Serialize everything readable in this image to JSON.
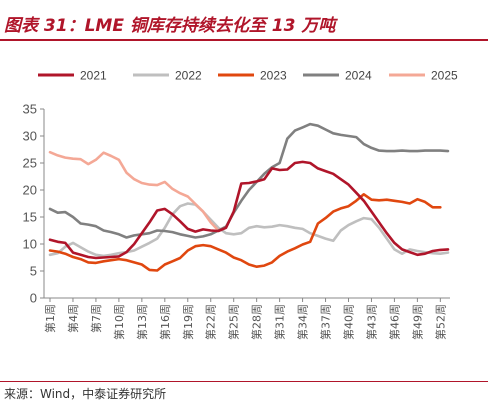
{
  "header": {
    "title": "图表 31：LME 铜库存持续去化至 13 万吨"
  },
  "footer": {
    "source": "来源：Wind，中泰证券研究所"
  },
  "colors": {
    "accent": "#b0152a"
  },
  "chart_data": {
    "type": "line",
    "title": "",
    "xlabel": "",
    "ylabel": "",
    "ylim": [
      0,
      35
    ],
    "yticks": [
      0,
      5,
      10,
      15,
      20,
      25,
      30,
      35
    ],
    "grid": false,
    "legend_position": "top",
    "x": [
      1,
      2,
      3,
      4,
      5,
      6,
      7,
      8,
      9,
      10,
      11,
      12,
      13,
      14,
      15,
      16,
      17,
      18,
      19,
      20,
      21,
      22,
      23,
      24,
      25,
      26,
      27,
      28,
      29,
      30,
      31,
      32,
      33,
      34,
      35,
      36,
      37,
      38,
      39,
      40,
      41,
      42,
      43,
      44,
      45,
      46,
      47,
      48,
      49,
      50,
      51,
      52,
      53
    ],
    "xtick_labels": [
      "第1周",
      "第4周",
      "第7周",
      "第10周",
      "第13周",
      "第16周",
      "第19周",
      "第22周",
      "第25周",
      "第28周",
      "第31周",
      "第34周",
      "第37周",
      "第40周",
      "第43周",
      "第46周",
      "第49周",
      "第52周"
    ],
    "xtick_positions": [
      1,
      4,
      7,
      10,
      13,
      16,
      19,
      22,
      25,
      28,
      31,
      34,
      37,
      40,
      43,
      46,
      49,
      52
    ],
    "series": [
      {
        "name": "2021",
        "color": "#b0152a",
        "values": [
          10.8,
          10.4,
          10.2,
          8.4,
          8.0,
          7.6,
          7.4,
          7.5,
          7.6,
          7.7,
          8.5,
          10.0,
          12.0,
          14.0,
          16.2,
          16.5,
          15.5,
          14.2,
          12.8,
          12.3,
          12.7,
          12.5,
          12.4,
          13.0,
          16.0,
          21.2,
          21.3,
          21.6,
          22.0,
          24.0,
          23.7,
          23.8,
          25.0,
          25.2,
          25.0,
          24.0,
          23.5,
          23.0,
          22.0,
          21.0,
          19.5,
          18.0,
          16.0,
          14.0,
          12.0,
          10.2,
          9.0,
          8.5,
          8.0,
          8.2,
          8.7,
          8.9,
          9.0
        ]
      },
      {
        "name": "2022",
        "color": "#bfbfbf",
        "values": [
          8.0,
          8.3,
          9.5,
          10.2,
          9.4,
          8.6,
          8.0,
          7.8,
          8.0,
          8.3,
          8.5,
          8.8,
          9.5,
          10.2,
          11.0,
          13.0,
          15.5,
          17.0,
          17.5,
          17.3,
          16.0,
          14.5,
          13.0,
          12.0,
          11.8,
          12.0,
          13.0,
          13.3,
          13.1,
          13.2,
          13.5,
          13.3,
          13.0,
          12.8,
          12.0,
          11.5,
          11.0,
          10.6,
          12.5,
          13.5,
          14.2,
          14.8,
          14.6,
          13.0,
          11.0,
          9.0,
          8.2,
          9.0,
          8.7,
          8.5,
          8.3,
          8.2,
          8.4
        ]
      },
      {
        "name": "2023",
        "color": "#e0470f",
        "values": [
          8.8,
          8.6,
          8.2,
          7.6,
          7.2,
          6.6,
          6.5,
          6.8,
          7.0,
          7.2,
          7.0,
          6.6,
          6.2,
          5.2,
          5.1,
          6.2,
          6.8,
          7.4,
          8.8,
          9.6,
          9.8,
          9.6,
          9.0,
          8.4,
          7.5,
          7.0,
          6.2,
          5.8,
          6.0,
          6.6,
          7.8,
          8.6,
          9.2,
          9.9,
          10.4,
          13.8,
          14.8,
          16.0,
          16.6,
          17.0,
          18.0,
          19.2,
          18.2,
          18.1,
          18.2,
          18.0,
          17.8,
          17.5,
          18.3,
          17.8,
          16.8,
          16.8,
          null
        ]
      },
      {
        "name": "2024",
        "color": "#808080",
        "values": [
          16.5,
          15.8,
          15.9,
          15.0,
          13.8,
          13.6,
          13.3,
          12.5,
          12.2,
          11.8,
          11.2,
          11.6,
          11.8,
          12.0,
          12.5,
          12.4,
          12.2,
          11.8,
          11.5,
          11.2,
          11.4,
          11.8,
          12.5,
          13.2,
          15.8,
          18.0,
          20.0,
          21.5,
          23.0,
          24.2,
          25.0,
          29.5,
          31.0,
          31.6,
          32.2,
          31.9,
          31.2,
          30.5,
          30.2,
          30.0,
          29.8,
          28.5,
          27.8,
          27.3,
          27.2,
          27.2,
          27.3,
          27.2,
          27.2,
          27.3,
          27.3,
          27.3,
          27.2
        ]
      },
      {
        "name": "2025",
        "color": "#f4a896",
        "values": [
          27.0,
          26.4,
          26.0,
          25.8,
          25.7,
          24.8,
          25.6,
          26.9,
          26.3,
          25.6,
          23.2,
          22.0,
          21.3,
          21.0,
          20.9,
          21.5,
          20.2,
          19.4,
          18.8,
          17.4,
          16.0,
          14.0,
          12.5,
          13.2,
          null,
          null,
          null,
          null,
          null,
          null,
          null,
          null,
          null,
          null,
          null,
          null,
          null,
          null,
          null,
          null,
          null,
          null,
          null,
          null,
          null,
          null,
          null,
          null,
          null,
          null,
          null,
          null,
          null
        ]
      }
    ]
  }
}
